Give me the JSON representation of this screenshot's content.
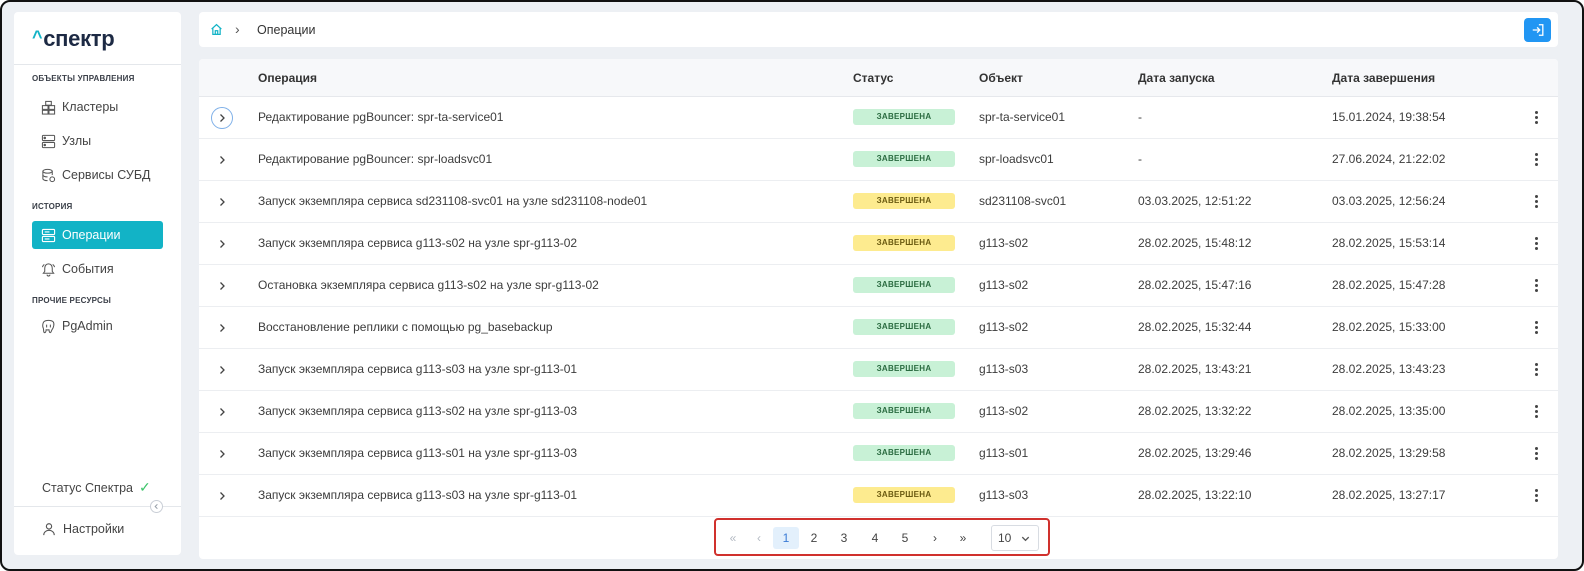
{
  "app": {
    "logo": "спектр",
    "logo_caret": "^"
  },
  "sidebar": {
    "sections": [
      {
        "title": "ОБЪЕКТЫ УПРАВЛЕНИЯ"
      },
      {
        "title": "ИСТОРИЯ"
      },
      {
        "title": "ПРОЧИЕ РЕСУРСЫ"
      }
    ],
    "items": [
      {
        "label": "Кластеры",
        "icon": "clusters-icon"
      },
      {
        "label": "Узлы",
        "icon": "nodes-icon"
      },
      {
        "label": "Сервисы СУБД",
        "icon": "database-icon"
      },
      {
        "label": "Операции",
        "icon": "operations-icon",
        "active": true
      },
      {
        "label": "События",
        "icon": "events-icon"
      },
      {
        "label": "PgAdmin",
        "icon": "pgadmin-icon"
      }
    ],
    "status_label": "Статус Спектра",
    "status_mark": "✓",
    "settings_label": "Настройки"
  },
  "breadcrumb": {
    "sep": "›",
    "current": "Операции"
  },
  "table": {
    "columns": [
      "Операция",
      "Статус",
      "Объект",
      "Дата запуска",
      "Дата завершения"
    ],
    "rows": [
      {
        "operation": "Редактирование pgBouncer: spr-ta-service01",
        "status": "ЗАВЕРШЕНА",
        "status_color": "green",
        "object": "spr-ta-service01",
        "start": "-",
        "end": "15.01.2024, 19:38:54"
      },
      {
        "operation": "Редактирование pgBouncer: spr-loadsvc01",
        "status": "ЗАВЕРШЕНА",
        "status_color": "green",
        "object": "spr-loadsvc01",
        "start": "-",
        "end": "27.06.2024, 21:22:02"
      },
      {
        "operation": "Запуск экземпляра сервиса sd231108-svc01 на узле sd231108-node01",
        "status": "ЗАВЕРШЕНА",
        "status_color": "yellow",
        "object": "sd231108-svc01",
        "start": "03.03.2025, 12:51:22",
        "end": "03.03.2025, 12:56:24"
      },
      {
        "operation": "Запуск экземпляра сервиса g113-s02 на узле spr-g113-02",
        "status": "ЗАВЕРШЕНА",
        "status_color": "yellow",
        "object": "g113-s02",
        "start": "28.02.2025, 15:48:12",
        "end": "28.02.2025, 15:53:14"
      },
      {
        "operation": "Остановка экземпляра сервиса g113-s02 на узле spr-g113-02",
        "status": "ЗАВЕРШЕНА",
        "status_color": "green",
        "object": "g113-s02",
        "start": "28.02.2025, 15:47:16",
        "end": "28.02.2025, 15:47:28"
      },
      {
        "operation": "Восстановление реплики с помощью pg_basebackup",
        "status": "ЗАВЕРШЕНА",
        "status_color": "green",
        "object": "g113-s02",
        "start": "28.02.2025, 15:32:44",
        "end": "28.02.2025, 15:33:00"
      },
      {
        "operation": "Запуск экземпляра сервиса g113-s03 на узле spr-g113-01",
        "status": "ЗАВЕРШЕНА",
        "status_color": "green",
        "object": "g113-s03",
        "start": "28.02.2025, 13:43:21",
        "end": "28.02.2025, 13:43:23"
      },
      {
        "operation": "Запуск экземпляра сервиса g113-s02 на узле spr-g113-03",
        "status": "ЗАВЕРШЕНА",
        "status_color": "green",
        "object": "g113-s02",
        "start": "28.02.2025, 13:32:22",
        "end": "28.02.2025, 13:35:00"
      },
      {
        "operation": "Запуск экземпляра сервиса g113-s01 на узле spr-g113-03",
        "status": "ЗАВЕРШЕНА",
        "status_color": "green",
        "object": "g113-s01",
        "start": "28.02.2025, 13:29:46",
        "end": "28.02.2025, 13:29:58"
      },
      {
        "operation": "Запуск экземпляра сервиса g113-s03 на узле spr-g113-01",
        "status": "ЗАВЕРШЕНА",
        "status_color": "yellow",
        "object": "g113-s03",
        "start": "28.02.2025, 13:22:10",
        "end": "28.02.2025, 13:27:17"
      }
    ]
  },
  "pagination": {
    "first": "«",
    "prev": "‹",
    "pages": [
      "1",
      "2",
      "3",
      "4",
      "5"
    ],
    "current": "1",
    "next": "›",
    "last": "»",
    "per_page": "10"
  },
  "colors": {
    "accent": "#12b3c6",
    "primary": "#2196f3",
    "ok_badge": "#c8f1d6",
    "warn_badge": "#fdeb8f",
    "highlight": "#d0312d"
  }
}
